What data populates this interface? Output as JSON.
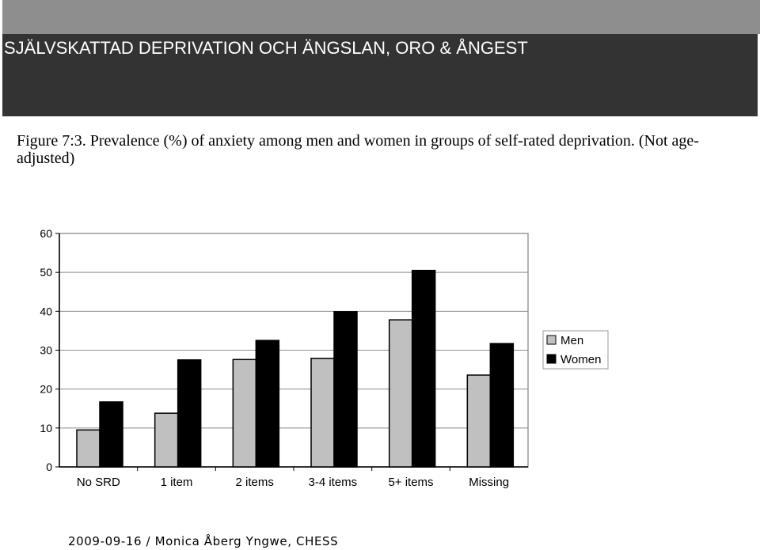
{
  "slide": {
    "title": "SJÄLVSKATTAD DEPRIVATION OCH ÄNGSLAN, ORO & ÅNGEST",
    "caption": "Figure 7:3. Prevalence (%) of anxiety among men and women in groups of self-rated deprivation. (Not age-adjusted)",
    "footer": "2009-09-16 / Monica Åberg Yngwe, CHESS"
  },
  "colors": {
    "header_band": "#333333",
    "men": "#c0c0c0",
    "women": "#000000"
  },
  "chart_data": {
    "type": "bar",
    "title": "",
    "xlabel": "",
    "ylabel": "",
    "categories": [
      "No SRD",
      "1 item",
      "2 items",
      "3-4 items",
      "5+ items",
      "Missing"
    ],
    "series": [
      {
        "name": "Men",
        "color": "#c0c0c0",
        "values": [
          9.5,
          13.8,
          27.6,
          27.9,
          37.8,
          23.6
        ]
      },
      {
        "name": "Women",
        "color": "#000000",
        "values": [
          16.7,
          27.5,
          32.5,
          39.9,
          50.5,
          31.7
        ]
      }
    ],
    "ylim": [
      0,
      60
    ],
    "yticks": [
      "0",
      "10",
      "20",
      "30",
      "40",
      "50",
      "60"
    ],
    "grid": true,
    "legend_position": "right"
  }
}
